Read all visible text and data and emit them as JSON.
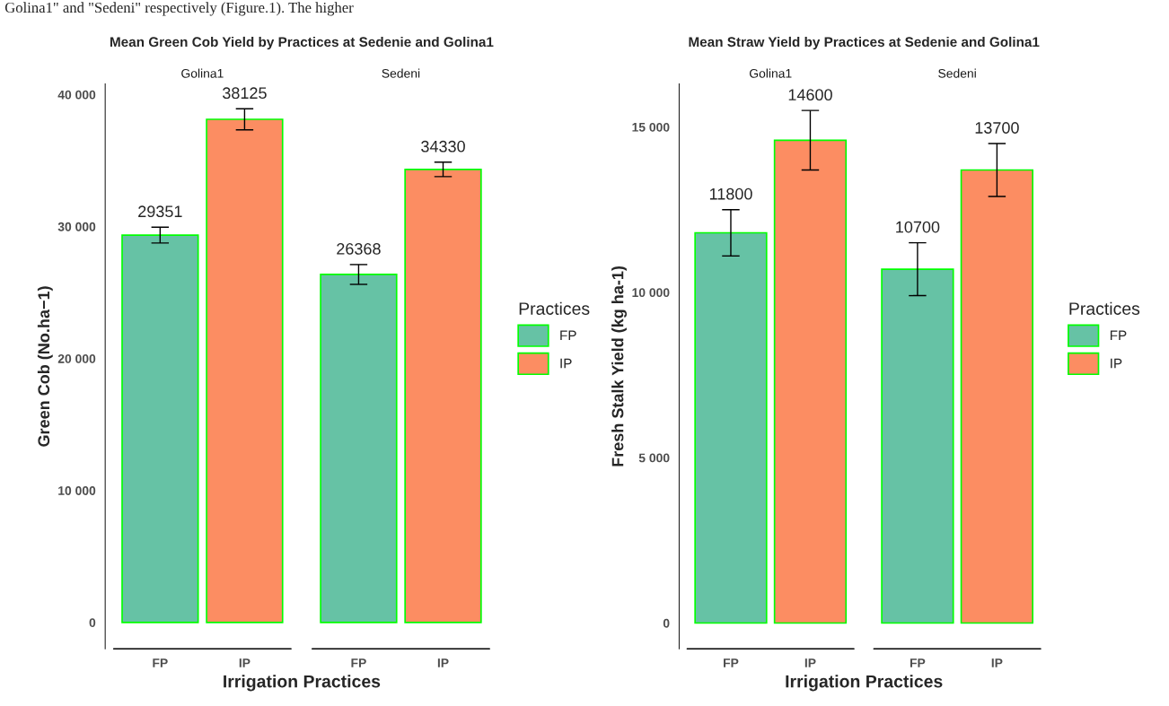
{
  "chart_data": [
    {
      "type": "bar",
      "title": "Mean Green Cob Yield by Practices at Sedenie and Golina1",
      "xlabel": "Irrigation Practices",
      "ylabel": "Green Cob (No.ha−1)",
      "legend_title": "Practices",
      "legend": "right",
      "data_labels": true,
      "grid": false,
      "categories": [
        "Golina1",
        "Sedeni"
      ],
      "series": [
        {
          "name": "FP",
          "color": "#66c2a5",
          "values": [
            29351,
            26368
          ],
          "errors": [
            600,
            750
          ]
        },
        {
          "name": "IP",
          "color": "#fc8d62",
          "values": [
            38125,
            34330
          ],
          "errors": [
            800,
            550
          ]
        }
      ],
      "ylim": [
        -2000,
        40800
      ],
      "yticks": [
        {
          "value": 0,
          "label": "0"
        },
        {
          "value": 10000,
          "label": "10 000"
        },
        {
          "value": 20000,
          "label": "20 000"
        },
        {
          "value": 30000,
          "label": "30 000"
        },
        {
          "value": 40000,
          "label": "40 000"
        }
      ],
      "annotations": [
        "Golina1\" and \"Sedeni\" respectively (Figure.1). The higher"
      ]
    },
    {
      "type": "bar",
      "title": "Mean Straw Yield by Practices at Sedenie and Golina1",
      "xlabel": "Irrigation Practices",
      "ylabel": "Fresh Stalk Yield (kg ha-1)",
      "legend_title": "Practices",
      "legend": "right",
      "data_labels": true,
      "grid": false,
      "categories": [
        "Golina1",
        "Sedeni"
      ],
      "series": [
        {
          "name": "FP",
          "color": "#66c2a5",
          "values": [
            11800,
            10700
          ],
          "errors": [
            700,
            800
          ]
        },
        {
          "name": "IP",
          "color": "#fc8d62",
          "values": [
            14600,
            13700
          ],
          "errors": [
            900,
            800
          ]
        }
      ],
      "ylim": [
        -780,
        16300
      ],
      "yticks": [
        {
          "value": 0,
          "label": "0"
        },
        {
          "value": 5000,
          "label": "5 000"
        },
        {
          "value": 10000,
          "label": "10 000"
        },
        {
          "value": 15000,
          "label": "15 000"
        }
      ]
    }
  ]
}
